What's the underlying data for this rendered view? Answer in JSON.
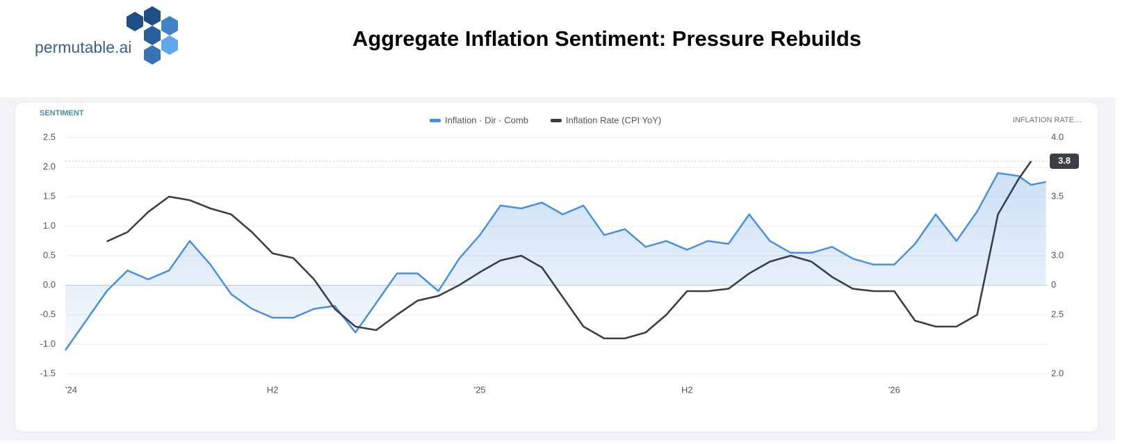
{
  "header": {
    "logo_text": "permutable.ai",
    "title": "Aggregate Inflation Sentiment: Pressure Rebuilds"
  },
  "chart_data": {
    "type": "line",
    "y_label": "SENTIMENT",
    "y2_label": "INFLATION RATE…",
    "y2_zero_label": "0",
    "x": [
      2024,
      2024.05,
      2024.1,
      2024.15,
      2024.2,
      2024.25,
      2024.3,
      2024.35,
      2024.4,
      2024.45,
      2024.5,
      2024.55,
      2024.6,
      2024.65,
      2024.7,
      2024.75,
      2024.8,
      2024.85,
      2024.9,
      2024.95,
      2025,
      2025.05,
      2025.1,
      2025.15,
      2025.2,
      2025.25,
      2025.3,
      2025.35,
      2025.4,
      2025.45,
      2025.5,
      2025.55,
      2025.6,
      2025.65,
      2025.7,
      2025.75,
      2025.8,
      2025.85,
      2025.9,
      2025.95,
      2026,
      2026.05,
      2026.1,
      2026.15,
      2026.2,
      2026.25,
      2026.3,
      2026.33,
      2026.366
    ],
    "xlim": [
      2024,
      2026.37
    ],
    "xticks": [
      {
        "value": 2024,
        "label": "'24"
      },
      {
        "value": 2024.5,
        "label": "H2"
      },
      {
        "value": 2025,
        "label": "'25"
      },
      {
        "value": 2025.5,
        "label": "H2"
      },
      {
        "value": 2026,
        "label": "'26"
      }
    ],
    "ylim": [
      -1.5,
      2.5
    ],
    "yticks": [
      -1.5,
      {
        "value": -1,
        "label": "-1.0"
      },
      -0.5,
      {
        "value": 0,
        "label": "0.0"
      },
      0.5,
      {
        "value": 1,
        "label": "1.0"
      },
      1.5,
      {
        "value": 2,
        "label": "2.0"
      },
      2.5
    ],
    "y2lim": [
      2,
      4
    ],
    "y2ticks": [
      {
        "value": 2,
        "label": "2.0"
      },
      2.5,
      {
        "value": 3,
        "label": "3.0"
      },
      3.5,
      {
        "value": 4,
        "label": "4.0"
      }
    ],
    "grid": true,
    "legend": "top",
    "series": [
      {
        "name": "Inflation · Dir · Comb",
        "color": "#4a8fdc",
        "area": true,
        "values": [
          -1.1,
          -0.6,
          -0.1,
          0.25,
          0.1,
          0.25,
          0.75,
          0.35,
          -0.15,
          -0.4,
          -0.55,
          -0.55,
          -0.4,
          -0.35,
          -0.8,
          -0.3,
          0.2,
          0.2,
          -0.1,
          0.45,
          0.85,
          1.35,
          1.3,
          1.4,
          1.2,
          1.35,
          0.85,
          0.95,
          0.65,
          0.75,
          0.6,
          0.75,
          0.7,
          1.2,
          0.75,
          0.55,
          0.55,
          0.65,
          0.45,
          0.35,
          0.35,
          0.7,
          1.2,
          0.75,
          1.25,
          1.9,
          1.85,
          1.7,
          1.75
        ]
      },
      {
        "name": "Inflation Rate (CPI YoY)",
        "color": "#3a3f47",
        "axis": "y2",
        "values": [
          null,
          null,
          3.12,
          3.2,
          3.37,
          3.5,
          3.47,
          3.4,
          3.35,
          3.2,
          3.02,
          2.98,
          2.8,
          2.55,
          2.4,
          2.37,
          2.5,
          2.62,
          2.66,
          2.75,
          2.86,
          2.96,
          3.0,
          2.9,
          2.65,
          2.4,
          2.3,
          2.3,
          2.35,
          2.5,
          2.7,
          2.7,
          2.72,
          2.85,
          2.95,
          3.0,
          2.95,
          2.82,
          2.72,
          2.7,
          2.7,
          2.45,
          2.4,
          2.4,
          2.5,
          3.35,
          3.65,
          3.8,
          null
        ],
        "value_labels": [
          null,
          null,
          null,
          null,
          null,
          null,
          null,
          null,
          null,
          null,
          null,
          null,
          null,
          null,
          null,
          null,
          null,
          null,
          null,
          null,
          null,
          null,
          null,
          null,
          null,
          null,
          null,
          null,
          null,
          null,
          null,
          null,
          null,
          null,
          null,
          null,
          null,
          null,
          null,
          null,
          null,
          null,
          null,
          null,
          null,
          null,
          null,
          "3.8",
          null
        ]
      }
    ]
  }
}
